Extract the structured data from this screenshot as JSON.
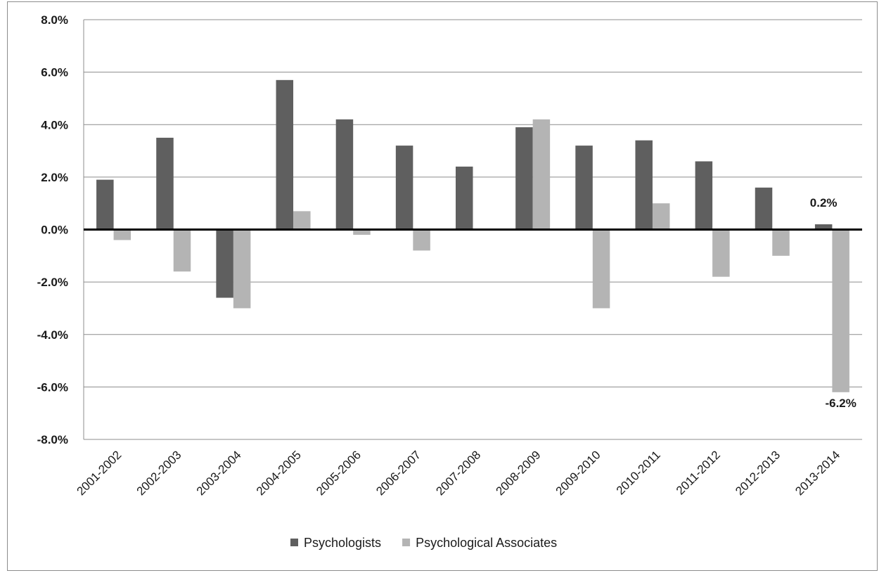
{
  "chart_data": {
    "type": "bar",
    "title": "",
    "xlabel": "",
    "ylabel": "",
    "ylim": [
      -8.0,
      8.0
    ],
    "ytick_step": 2.0,
    "yticks": [
      "8.0%",
      "6.0%",
      "4.0%",
      "2.0%",
      "0.0%",
      "-2.0%",
      "-4.0%",
      "-6.0%",
      "-8.0%"
    ],
    "grid": true,
    "legend": "bottom",
    "categories": [
      "2001-2002",
      "2002-2003",
      "2003-2004",
      "2004-2005",
      "2005-2006",
      "2006-2007",
      "2007-2008",
      "2008-2009",
      "2009-2010",
      "2010-2011",
      "2011-2012",
      "2012-2013",
      "2013-2014"
    ],
    "series": [
      {
        "name": "Psychologists",
        "color": "#5f5f5f",
        "values": [
          1.9,
          3.5,
          -2.6,
          5.7,
          4.2,
          3.2,
          2.4,
          3.9,
          3.2,
          3.4,
          2.6,
          1.6,
          0.2
        ]
      },
      {
        "name": "Psychological Associates",
        "color": "#b4b4b4",
        "values": [
          -0.4,
          -1.6,
          -3.0,
          0.7,
          -0.2,
          -0.8,
          0.0,
          4.2,
          -3.0,
          1.0,
          -1.8,
          -1.0,
          -6.2
        ]
      }
    ],
    "data_labels": [
      {
        "series": 0,
        "index": 12,
        "text": "0.2%"
      },
      {
        "series": 1,
        "index": 12,
        "text": "-6.2%"
      }
    ]
  }
}
